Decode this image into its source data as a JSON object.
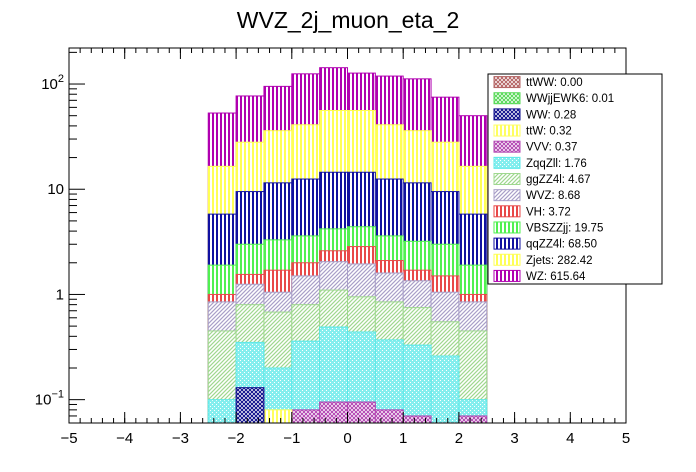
{
  "chart_data": {
    "type": "bar",
    "title": "WVZ_2j_muon_eta_2",
    "xlabel": "",
    "ylabel": "",
    "ylog": true,
    "xlim": [
      -5,
      5
    ],
    "ylim": [
      0.06,
      220
    ],
    "x_ticks": [
      -5,
      -4,
      -3,
      -2,
      -1,
      0,
      1,
      2,
      3,
      4,
      5
    ],
    "y_ticks": [
      {
        "value": 0.1,
        "base": "10",
        "exp": "−1"
      },
      {
        "value": 1,
        "label": "1"
      },
      {
        "value": 10,
        "label": "10"
      },
      {
        "value": 100,
        "base": "10",
        "exp": "2"
      }
    ],
    "bin_edges": [
      -2.5,
      -2.0,
      -1.5,
      -1.0,
      -0.5,
      0.0,
      0.5,
      1.0,
      1.5,
      2.0,
      2.5
    ],
    "stack_order": "bottom-to-top",
    "series": [
      {
        "name": "ttWW: 0.00",
        "color": "#b46464",
        "pattern": "cross",
        "totals": [
          0.06,
          0.06,
          0.06,
          0.06,
          0.06,
          0.06,
          0.06,
          0.06,
          0.06,
          0.06
        ]
      },
      {
        "name": "WWjjEWK6: 0.01",
        "color": "#57d957",
        "pattern": "cross",
        "totals": [
          0.06,
          0.06,
          0.06,
          0.06,
          0.06,
          0.06,
          0.06,
          0.06,
          0.06,
          0.06
        ]
      },
      {
        "name": "WW: 0.28",
        "color": "#0e0e8c",
        "pattern": "cross",
        "totals": [
          0.06,
          0.13,
          0.06,
          0.06,
          0.06,
          0.06,
          0.06,
          0.06,
          0.06,
          0.06
        ]
      },
      {
        "name": "ttW: 0.32",
        "color": "#ffff60",
        "pattern": "vertical",
        "totals": [
          0.06,
          0.06,
          0.08,
          0.06,
          0.06,
          0.06,
          0.06,
          0.06,
          0.06,
          0.06
        ]
      },
      {
        "name": "VVV: 0.37",
        "color": "#b347b3",
        "pattern": "cross",
        "totals": [
          0.06,
          0.06,
          0.06,
          0.08,
          0.095,
          0.095,
          0.08,
          0.07,
          0.06,
          0.07
        ]
      },
      {
        "name": "ZqqZll: 1.76",
        "color": "#5ae8e8",
        "pattern": "dots",
        "totals": [
          0.1,
          0.35,
          0.2,
          0.36,
          0.49,
          0.44,
          0.37,
          0.33,
          0.26,
          0.1
        ]
      },
      {
        "name": "ggZZ4l: 4.67",
        "color": "#9fd88f",
        "pattern": "diag",
        "totals": [
          0.45,
          0.8,
          0.68,
          0.8,
          1.1,
          0.95,
          0.85,
          0.75,
          0.55,
          0.45
        ]
      },
      {
        "name": "WVZ: 8.68",
        "color": "#a99fc8",
        "pattern": "diag",
        "totals": [
          0.85,
          1.25,
          1.05,
          1.5,
          2.05,
          1.95,
          1.6,
          1.35,
          1.05,
          0.85
        ]
      },
      {
        "name": "VH: 3.72",
        "color": "#e84848",
        "pattern": "vertical",
        "totals": [
          1.0,
          1.55,
          1.7,
          2.0,
          2.6,
          2.85,
          2.1,
          1.7,
          1.5,
          1.0
        ]
      },
      {
        "name": "VBSZZjj: 19.75",
        "color": "#50f050",
        "pattern": "vertical",
        "totals": [
          1.9,
          3.0,
          3.3,
          3.6,
          4.2,
          4.4,
          3.6,
          3.2,
          3.0,
          1.9
        ]
      },
      {
        "name": "qqZZ4l: 68.50",
        "color": "#1010a0",
        "pattern": "vertical",
        "totals": [
          5.8,
          9.5,
          11.5,
          12.5,
          14.5,
          14.5,
          12.5,
          11.5,
          9.5,
          5.8
        ]
      },
      {
        "name": "Zjets: 282.42",
        "color": "#ffff55",
        "pattern": "vertical",
        "totals": [
          16.5,
          28.0,
          36.0,
          41.0,
          56.0,
          56.0,
          41.0,
          36.0,
          28.0,
          16.5
        ]
      },
      {
        "name": "WZ: 615.64",
        "color": "#b000b0",
        "pattern": "vertical",
        "totals": [
          53.0,
          77.0,
          95.0,
          125.0,
          143.0,
          127.0,
          119.0,
          112.0,
          75.0,
          50.0
        ]
      }
    ]
  }
}
